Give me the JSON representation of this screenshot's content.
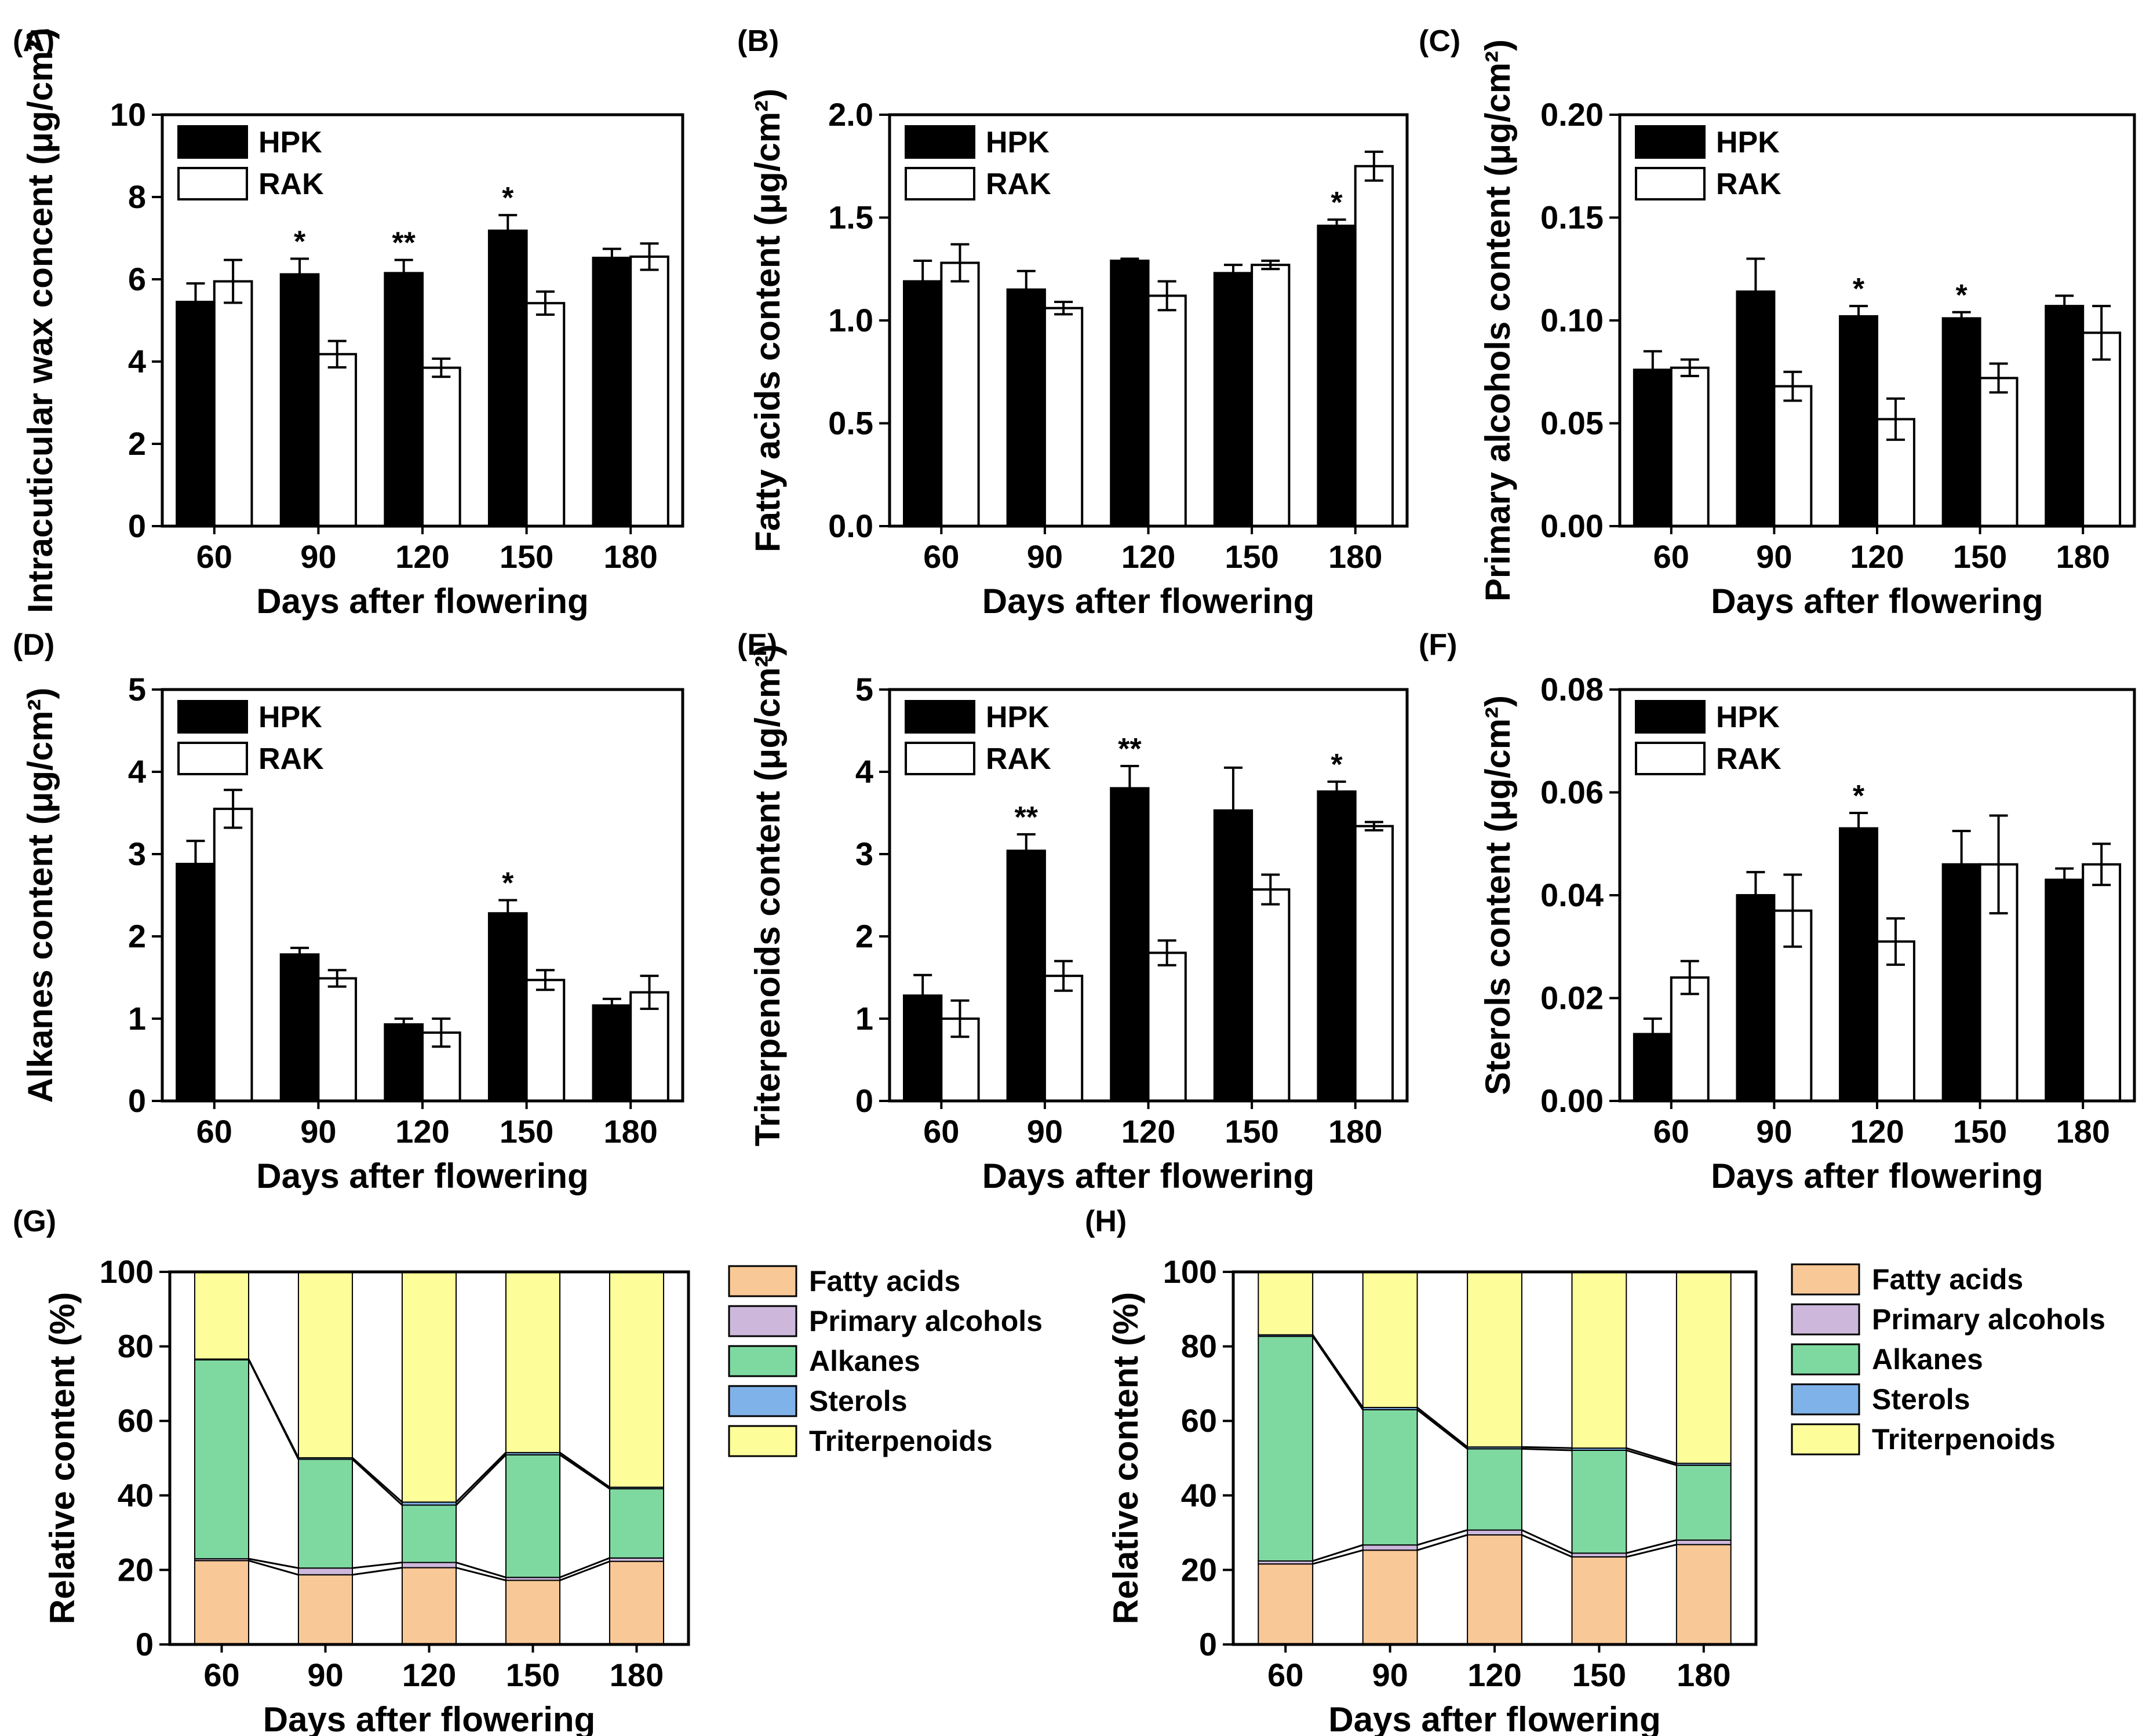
{
  "figure": {
    "xlabel_common": "Days after flowering",
    "legend_series": [
      "HPK",
      "RAK"
    ],
    "series_colors": {
      "HPK": "#000000",
      "RAK": "#ffffff"
    }
  },
  "chart_data": [
    {
      "panel": "(A)",
      "type": "bar",
      "categories": [
        "60",
        "90",
        "120",
        "150",
        "180"
      ],
      "series": [
        {
          "name": "HPK",
          "values": [
            5.45,
            6.12,
            6.15,
            7.18,
            6.52
          ],
          "errors": [
            0.45,
            0.38,
            0.32,
            0.38,
            0.22
          ]
        },
        {
          "name": "RAK",
          "values": [
            5.95,
            4.18,
            3.85,
            5.42,
            6.55
          ],
          "errors": [
            0.52,
            0.32,
            0.22,
            0.28,
            0.32
          ]
        }
      ],
      "significance": [
        "",
        "*",
        "**",
        "*",
        ""
      ],
      "ylim": [
        0,
        10
      ],
      "yticks": [
        0,
        2,
        4,
        6,
        8,
        10
      ],
      "ytick_labels": [
        "0",
        "2",
        "4",
        "6",
        "8",
        "10"
      ],
      "ylabel": "Intracuticular wax concent (μg/cm²)",
      "xlabel": "Days after flowering"
    },
    {
      "panel": "(B)",
      "type": "bar",
      "categories": [
        "60",
        "90",
        "120",
        "150",
        "180"
      ],
      "series": [
        {
          "name": "HPK",
          "values": [
            1.19,
            1.15,
            1.29,
            1.23,
            1.46
          ],
          "errors": [
            0.1,
            0.09,
            0.01,
            0.04,
            0.03
          ]
        },
        {
          "name": "RAK",
          "values": [
            1.28,
            1.06,
            1.12,
            1.27,
            1.75
          ],
          "errors": [
            0.09,
            0.03,
            0.07,
            0.02,
            0.07
          ]
        }
      ],
      "significance": [
        "",
        "",
        "",
        "",
        "*"
      ],
      "ylim": [
        0,
        2.0
      ],
      "yticks": [
        0,
        0.5,
        1.0,
        1.5,
        2.0
      ],
      "ytick_labels": [
        "0.0",
        "0.5",
        "1.0",
        "1.5",
        "2.0"
      ],
      "ylabel": "Fatty acids content (μg/cm²)",
      "xlabel": "Days after flowering"
    },
    {
      "panel": "(C)",
      "type": "bar",
      "categories": [
        "60",
        "90",
        "120",
        "150",
        "180"
      ],
      "series": [
        {
          "name": "HPK",
          "values": [
            0.076,
            0.114,
            0.102,
            0.101,
            0.107
          ],
          "errors": [
            0.009,
            0.016,
            0.005,
            0.003,
            0.005
          ]
        },
        {
          "name": "RAK",
          "values": [
            0.077,
            0.068,
            0.052,
            0.072,
            0.094
          ],
          "errors": [
            0.004,
            0.007,
            0.01,
            0.007,
            0.013
          ]
        }
      ],
      "significance": [
        "",
        "",
        "*",
        "*",
        ""
      ],
      "ylim": [
        0,
        0.2
      ],
      "yticks": [
        0,
        0.05,
        0.1,
        0.15,
        0.2
      ],
      "ytick_labels": [
        "0.00",
        "0.05",
        "0.10",
        "0.15",
        "0.20"
      ],
      "ylabel": "Primary alcohols content (μg/cm²)",
      "xlabel": "Days after flowering"
    },
    {
      "panel": "(D)",
      "type": "bar",
      "categories": [
        "60",
        "90",
        "120",
        "150",
        "180"
      ],
      "series": [
        {
          "name": "HPK",
          "values": [
            2.88,
            1.78,
            0.93,
            2.28,
            1.16
          ],
          "errors": [
            0.28,
            0.08,
            0.07,
            0.16,
            0.08
          ]
        },
        {
          "name": "RAK",
          "values": [
            3.55,
            1.49,
            0.83,
            1.47,
            1.32
          ],
          "errors": [
            0.23,
            0.1,
            0.17,
            0.12,
            0.2
          ]
        }
      ],
      "significance": [
        "",
        "",
        "",
        "*",
        ""
      ],
      "ylim": [
        0,
        5
      ],
      "yticks": [
        0,
        1,
        2,
        3,
        4,
        5
      ],
      "ytick_labels": [
        "0",
        "1",
        "2",
        "3",
        "4",
        "5"
      ],
      "ylabel": "Alkanes content (μg/cm²)",
      "xlabel": "Days after flowering"
    },
    {
      "panel": "(E)",
      "type": "bar",
      "categories": [
        "60",
        "90",
        "120",
        "150",
        "180"
      ],
      "series": [
        {
          "name": "HPK",
          "values": [
            1.28,
            3.04,
            3.8,
            3.53,
            3.76
          ],
          "errors": [
            0.25,
            0.2,
            0.27,
            0.52,
            0.12
          ]
        },
        {
          "name": "RAK",
          "values": [
            1.0,
            1.52,
            1.8,
            2.57,
            3.34
          ],
          "errors": [
            0.22,
            0.18,
            0.15,
            0.18,
            0.05
          ]
        }
      ],
      "significance": [
        "",
        "**",
        "**",
        "",
        "*"
      ],
      "ylim": [
        0,
        5
      ],
      "yticks": [
        0,
        1,
        2,
        3,
        4,
        5
      ],
      "ytick_labels": [
        "0",
        "1",
        "2",
        "3",
        "4",
        "5"
      ],
      "ylabel": "Triterpenoids content (μg/cm²)",
      "xlabel": "Days after flowering"
    },
    {
      "panel": "(F)",
      "type": "bar",
      "categories": [
        "60",
        "90",
        "120",
        "150",
        "180"
      ],
      "series": [
        {
          "name": "HPK",
          "values": [
            0.013,
            0.04,
            0.053,
            0.046,
            0.043
          ],
          "errors": [
            0.003,
            0.0045,
            0.003,
            0.0065,
            0.0022
          ]
        },
        {
          "name": "RAK",
          "values": [
            0.024,
            0.037,
            0.031,
            0.046,
            0.046
          ],
          "errors": [
            0.0032,
            0.007,
            0.0045,
            0.0095,
            0.004
          ]
        }
      ],
      "significance": [
        "",
        "",
        "*",
        "",
        ""
      ],
      "ylim": [
        0,
        0.08
      ],
      "yticks": [
        0,
        0.02,
        0.04,
        0.06,
        0.08
      ],
      "ytick_labels": [
        "0.00",
        "0.02",
        "0.04",
        "0.06",
        "0.08"
      ],
      "ylabel": "Sterols content (μg/cm²)",
      "xlabel": "Days after flowering"
    },
    {
      "panel": "(G)",
      "type": "bar",
      "stacked": true,
      "categories": [
        "60",
        "90",
        "120",
        "150",
        "180"
      ],
      "series": [
        {
          "name": "Fatty acids",
          "color": "#f9c897",
          "values": [
            22.5,
            18.7,
            20.6,
            17.2,
            22.3
          ]
        },
        {
          "name": "Primary alcohols",
          "color": "#cdb8dc",
          "values": [
            0.5,
            1.8,
            1.4,
            0.8,
            0.9
          ]
        },
        {
          "name": "Alkanes",
          "color": "#7ed9a1",
          "values": [
            53.4,
            29.2,
            15.4,
            32.9,
            18.6
          ]
        },
        {
          "name": "Sterols",
          "color": "#7fb2e8",
          "values": [
            0.2,
            0.4,
            0.8,
            0.6,
            0.4
          ]
        },
        {
          "name": "Triterpenoids",
          "color": "#fdfd9a",
          "values": [
            23.4,
            49.9,
            61.8,
            48.5,
            57.8
          ]
        }
      ],
      "ylim": [
        0,
        100
      ],
      "yticks": [
        0,
        20,
        40,
        60,
        80,
        100
      ],
      "ytick_labels": [
        "0",
        "20",
        "40",
        "60",
        "80",
        "100"
      ],
      "ylabel": "Relative content (%)",
      "xlabel": "Days after flowering"
    },
    {
      "panel": "(H)",
      "type": "bar",
      "stacked": true,
      "categories": [
        "60",
        "90",
        "120",
        "150",
        "180"
      ],
      "series": [
        {
          "name": "Fatty acids",
          "color": "#f9c897",
          "values": [
            21.6,
            25.3,
            29.4,
            23.5,
            26.8
          ]
        },
        {
          "name": "Primary alcohols",
          "color": "#cdb8dc",
          "values": [
            0.8,
            1.4,
            1.3,
            1.0,
            1.2
          ]
        },
        {
          "name": "Alkanes",
          "color": "#7ed9a1",
          "values": [
            60.3,
            36.3,
            21.8,
            27.6,
            20.1
          ]
        },
        {
          "name": "Sterols",
          "color": "#7fb2e8",
          "values": [
            0.4,
            0.6,
            0.5,
            0.6,
            0.5
          ]
        },
        {
          "name": "Triterpenoids",
          "color": "#fdfd9a",
          "values": [
            16.9,
            36.4,
            47.0,
            47.3,
            51.4
          ]
        }
      ],
      "ylim": [
        0,
        100
      ],
      "yticks": [
        0,
        20,
        40,
        60,
        80,
        100
      ],
      "ytick_labels": [
        "0",
        "20",
        "40",
        "60",
        "80",
        "100"
      ],
      "ylabel": "Relative content (%)",
      "xlabel": "Days after flowering"
    }
  ]
}
